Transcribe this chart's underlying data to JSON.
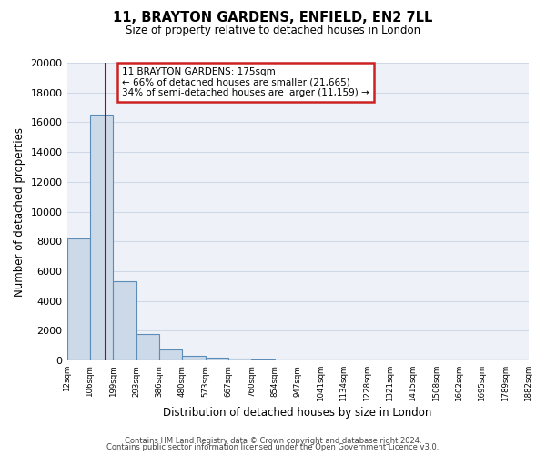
{
  "title": "11, BRAYTON GARDENS, ENFIELD, EN2 7LL",
  "subtitle": "Size of property relative to detached houses in London",
  "xlabel": "Distribution of detached houses by size in London",
  "ylabel": "Number of detached properties",
  "bin_labels": [
    "12sqm",
    "106sqm",
    "199sqm",
    "293sqm",
    "386sqm",
    "480sqm",
    "573sqm",
    "667sqm",
    "760sqm",
    "854sqm",
    "947sqm",
    "1041sqm",
    "1134sqm",
    "1228sqm",
    "1321sqm",
    "1415sqm",
    "1508sqm",
    "1602sqm",
    "1695sqm",
    "1789sqm",
    "1882sqm"
  ],
  "bar_values": [
    8200,
    16500,
    5300,
    1800,
    750,
    290,
    200,
    120,
    60,
    30,
    0,
    0,
    0,
    0,
    0,
    0,
    0,
    0,
    0,
    0
  ],
  "bar_color": "#ccd9e8",
  "bar_edge_color": "#5b8db8",
  "grid_color": "#d0d8e8",
  "background_color": "#eef2f8",
  "red_line_x": 1.67,
  "property_size": "175sqm",
  "property_name": "11 BRAYTON GARDENS",
  "pct_smaller": 66,
  "n_smaller": 21665,
  "pct_larger": 34,
  "n_larger": 11159,
  "annotation_box_color": "#ffffff",
  "annotation_border_color": "#cc2222",
  "ylim": [
    0,
    20000
  ],
  "yticks": [
    0,
    2000,
    4000,
    6000,
    8000,
    10000,
    12000,
    14000,
    16000,
    18000,
    20000
  ],
  "footer1": "Contains HM Land Registry data © Crown copyright and database right 2024.",
  "footer2": "Contains public sector information licensed under the Open Government Licence v3.0."
}
